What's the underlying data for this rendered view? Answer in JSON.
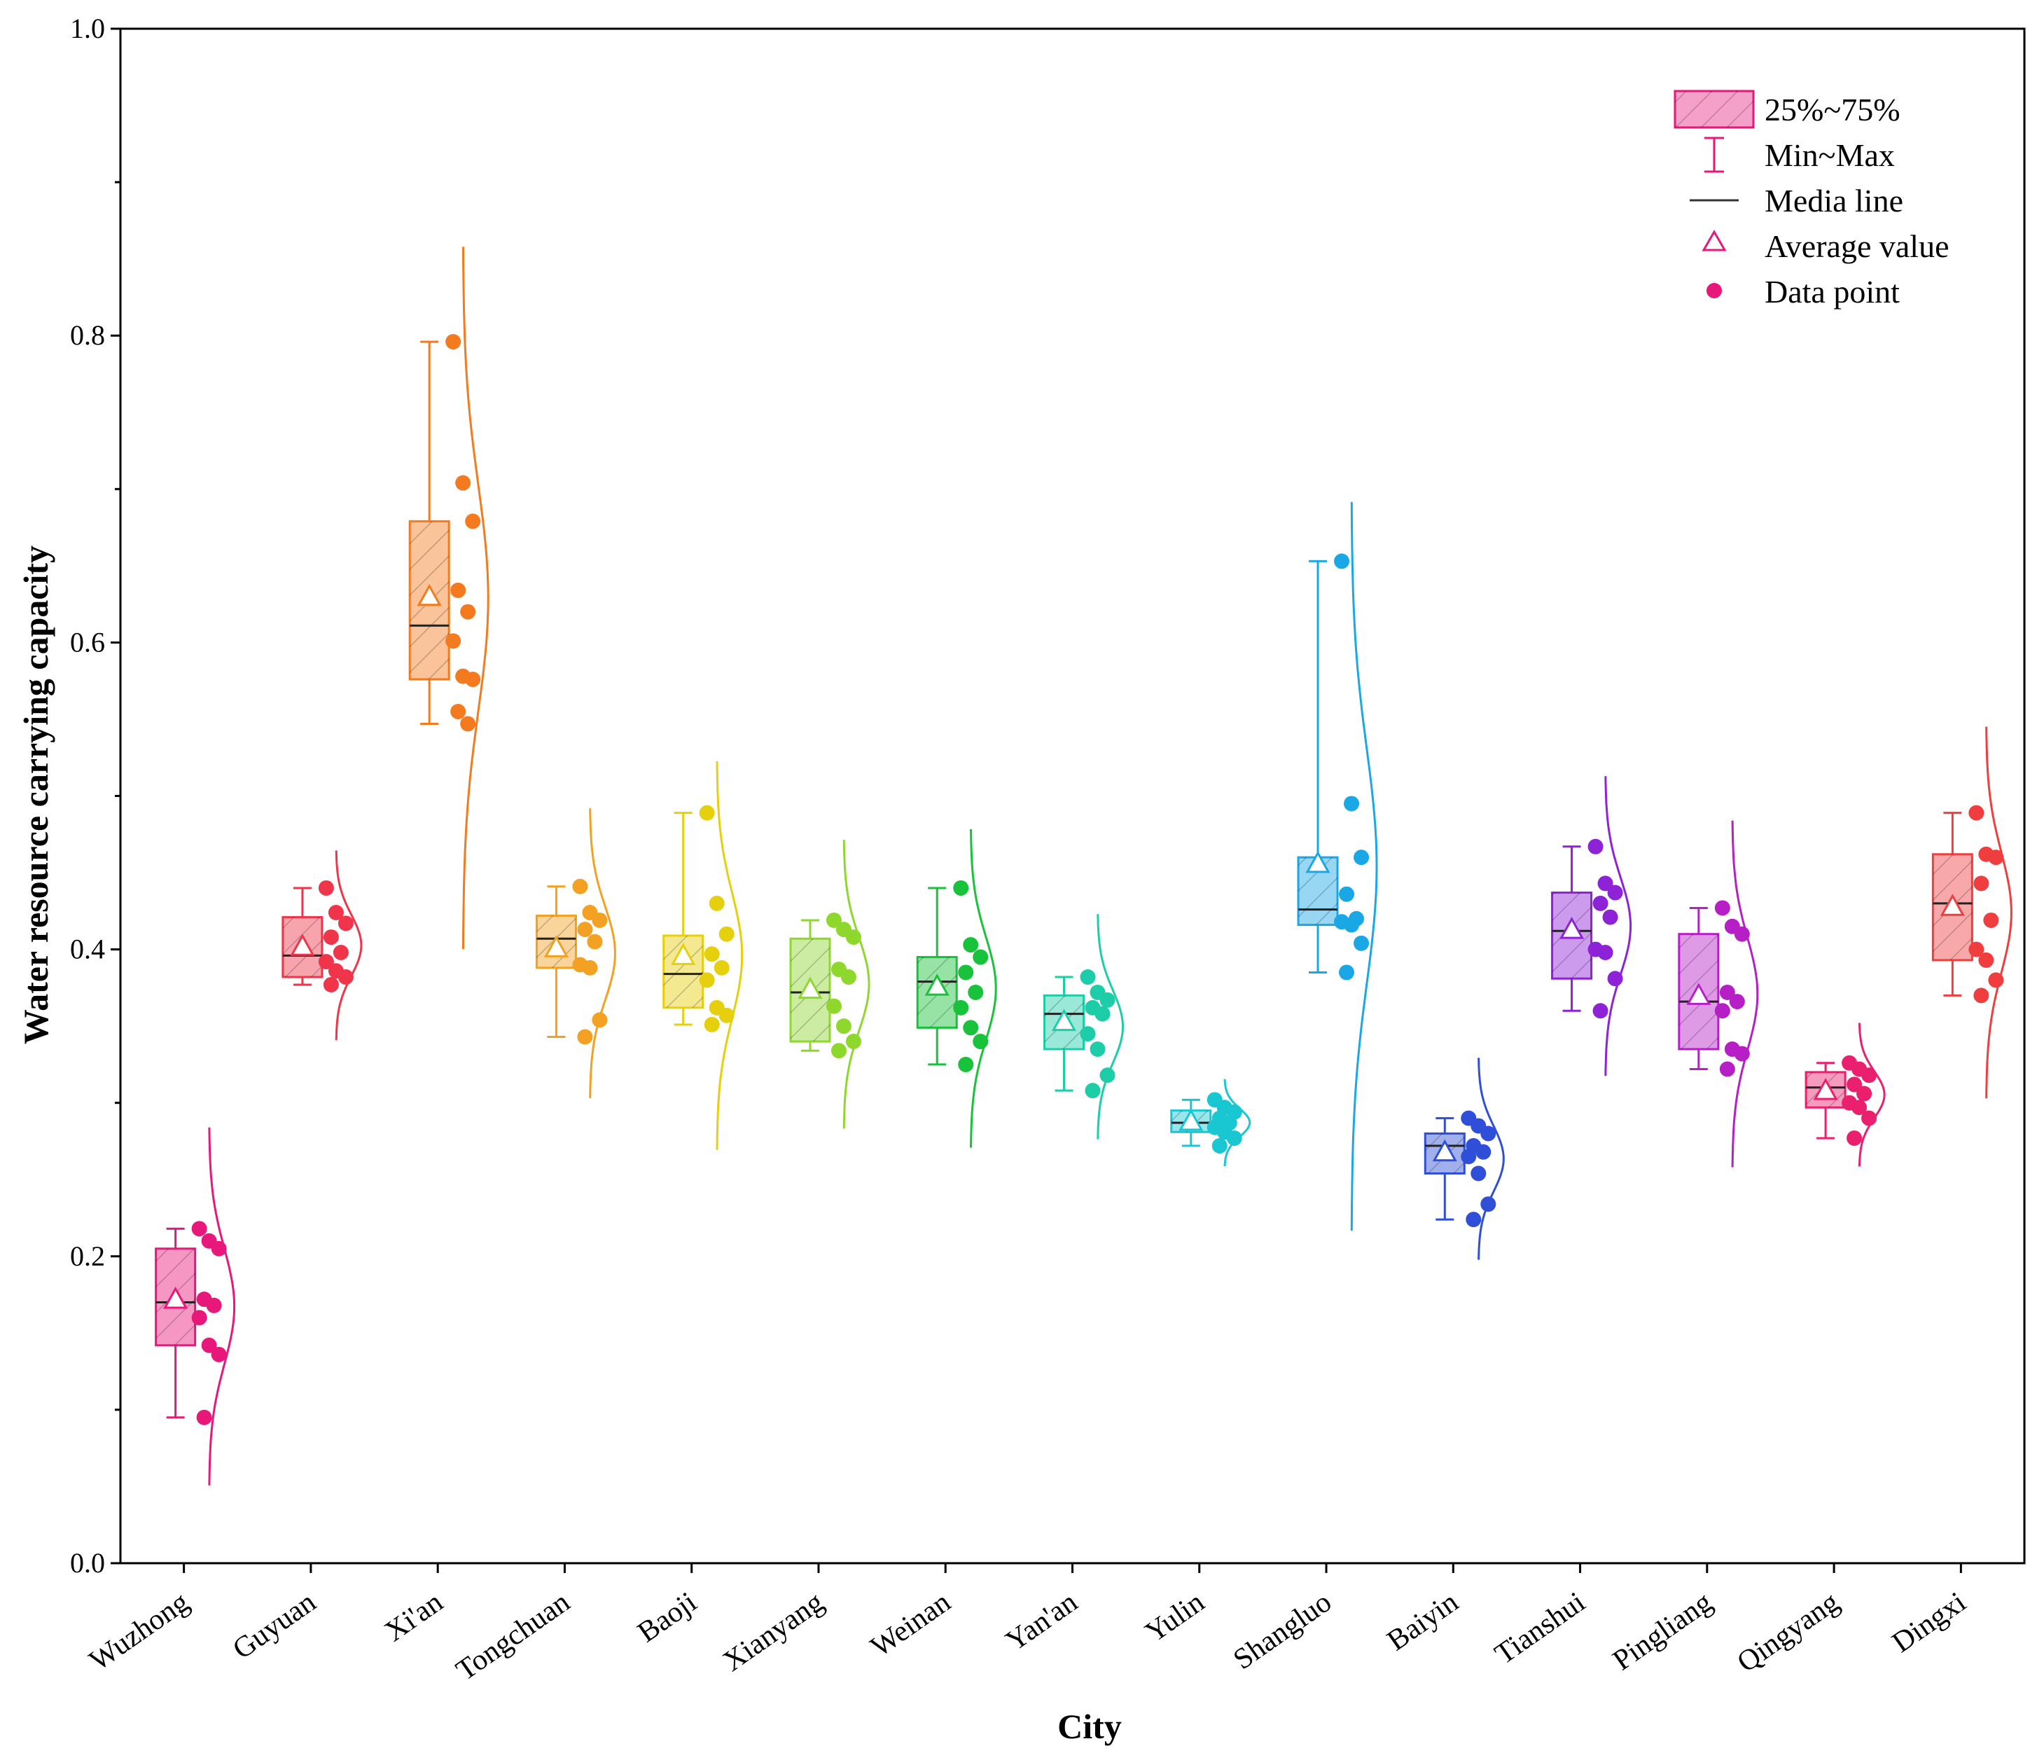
{
  "chart_data": {
    "type": "box",
    "xlabel": "City",
    "ylabel": "Water resource carrying capacity",
    "ylim": [
      0,
      1.0
    ],
    "yticks": [
      "0.0",
      "0.2",
      "0.4",
      "0.6",
      "0.8",
      "1.0"
    ],
    "categories": [
      "Wuzhong",
      "Guyuan",
      "Xi'an",
      "Tongchuan",
      "Baoji",
      "Xianyang",
      "Weinan",
      "Yan'an",
      "Yulin",
      "Shangluo",
      "Baiyin",
      "Tianshui",
      "Pingliang",
      "Qingyang",
      "Dingxi"
    ],
    "legend": {
      "position": "top-right",
      "items": [
        {
          "key": "box",
          "label": "25%~75%"
        },
        {
          "key": "whisker",
          "label": "Min~Max"
        },
        {
          "key": "median",
          "label": "Media line"
        },
        {
          "key": "mean",
          "label": "Average value"
        },
        {
          "key": "point",
          "label": "Data point"
        }
      ]
    },
    "series": [
      {
        "city": "Wuzhong",
        "color": "#e8177a",
        "min": 0.095,
        "q1": 0.142,
        "median": 0.17,
        "q3": 0.205,
        "max": 0.218,
        "mean": 0.172,
        "points": [
          0.218,
          0.21,
          0.205,
          0.172,
          0.168,
          0.16,
          0.142,
          0.136,
          0.095
        ]
      },
      {
        "city": "Guyuan",
        "color": "#f0354a",
        "min": 0.377,
        "q1": 0.382,
        "median": 0.396,
        "q3": 0.421,
        "max": 0.44,
        "mean": 0.402,
        "points": [
          0.44,
          0.424,
          0.417,
          0.408,
          0.398,
          0.392,
          0.386,
          0.382,
          0.377
        ]
      },
      {
        "city": "Xi'an",
        "color": "#f47a20",
        "min": 0.547,
        "q1": 0.576,
        "median": 0.611,
        "q3": 0.679,
        "max": 0.796,
        "mean": 0.63,
        "points": [
          0.796,
          0.704,
          0.679,
          0.634,
          0.62,
          0.601,
          0.578,
          0.576,
          0.555,
          0.547
        ]
      },
      {
        "city": "Tongchuan",
        "color": "#f2a122",
        "min": 0.343,
        "q1": 0.388,
        "median": 0.407,
        "q3": 0.422,
        "max": 0.441,
        "mean": 0.401,
        "points": [
          0.441,
          0.424,
          0.419,
          0.413,
          0.405,
          0.39,
          0.388,
          0.354,
          0.343
        ]
      },
      {
        "city": "Baoji",
        "color": "#e6cf0c",
        "min": 0.351,
        "q1": 0.362,
        "median": 0.384,
        "q3": 0.409,
        "max": 0.489,
        "mean": 0.396,
        "points": [
          0.489,
          0.43,
          0.41,
          0.397,
          0.388,
          0.38,
          0.362,
          0.357,
          0.351
        ]
      },
      {
        "city": "Xianyang",
        "color": "#8ed82e",
        "min": 0.334,
        "q1": 0.34,
        "median": 0.372,
        "q3": 0.407,
        "max": 0.419,
        "mean": 0.374,
        "points": [
          0.419,
          0.413,
          0.408,
          0.387,
          0.382,
          0.363,
          0.35,
          0.34,
          0.334
        ]
      },
      {
        "city": "Weinan",
        "color": "#18c23a",
        "min": 0.325,
        "q1": 0.349,
        "median": 0.379,
        "q3": 0.395,
        "max": 0.44,
        "mean": 0.376,
        "points": [
          0.44,
          0.403,
          0.395,
          0.385,
          0.372,
          0.362,
          0.349,
          0.34,
          0.325
        ]
      },
      {
        "city": "Yan'an",
        "color": "#1dcda8",
        "min": 0.308,
        "q1": 0.335,
        "median": 0.358,
        "q3": 0.37,
        "max": 0.382,
        "mean": 0.353,
        "points": [
          0.382,
          0.372,
          0.367,
          0.362,
          0.358,
          0.345,
          0.335,
          0.318,
          0.308
        ]
      },
      {
        "city": "Yulin",
        "color": "#18c7d2",
        "min": 0.272,
        "q1": 0.281,
        "median": 0.287,
        "q3": 0.295,
        "max": 0.302,
        "mean": 0.288,
        "points": [
          0.302,
          0.297,
          0.294,
          0.29,
          0.287,
          0.284,
          0.281,
          0.277,
          0.272
        ]
      },
      {
        "city": "Shangluo",
        "color": "#1aa7e6",
        "min": 0.385,
        "q1": 0.416,
        "median": 0.426,
        "q3": 0.46,
        "max": 0.653,
        "mean": 0.456,
        "points": [
          0.653,
          0.495,
          0.46,
          0.436,
          0.42,
          0.418,
          0.416,
          0.404,
          0.385
        ]
      },
      {
        "city": "Baiyin",
        "color": "#2f4fd8",
        "min": 0.224,
        "q1": 0.254,
        "median": 0.272,
        "q3": 0.28,
        "max": 0.29,
        "mean": 0.268,
        "points": [
          0.29,
          0.285,
          0.28,
          0.272,
          0.268,
          0.265,
          0.254,
          0.234,
          0.224
        ]
      },
      {
        "city": "Tianshui",
        "color": "#8e22d6",
        "min": 0.36,
        "q1": 0.381,
        "median": 0.412,
        "q3": 0.437,
        "max": 0.467,
        "mean": 0.413,
        "points": [
          0.467,
          0.443,
          0.437,
          0.43,
          0.421,
          0.4,
          0.398,
          0.381,
          0.36
        ]
      },
      {
        "city": "Pingliang",
        "color": "#b61fc6",
        "min": 0.322,
        "q1": 0.335,
        "median": 0.366,
        "q3": 0.41,
        "max": 0.427,
        "mean": 0.37,
        "points": [
          0.427,
          0.415,
          0.41,
          0.372,
          0.366,
          0.36,
          0.335,
          0.332,
          0.322
        ]
      },
      {
        "city": "Qingyang",
        "color": "#ea1f6e",
        "min": 0.277,
        "q1": 0.297,
        "median": 0.31,
        "q3": 0.32,
        "max": 0.326,
        "mean": 0.308,
        "points": [
          0.326,
          0.322,
          0.318,
          0.312,
          0.306,
          0.3,
          0.297,
          0.29,
          0.277
        ]
      },
      {
        "city": "Dingxi",
        "color": "#f03e3e",
        "min": 0.37,
        "q1": 0.393,
        "median": 0.43,
        "q3": 0.462,
        "max": 0.489,
        "mean": 0.428,
        "points": [
          0.489,
          0.462,
          0.46,
          0.443,
          0.419,
          0.4,
          0.393,
          0.38,
          0.37
        ]
      }
    ]
  },
  "legend_colors": {
    "box_fill": "#f5a0c8",
    "box_stroke": "#e8177a",
    "mean": "#e8177a",
    "median": "#333333",
    "point": "#e8177a"
  }
}
